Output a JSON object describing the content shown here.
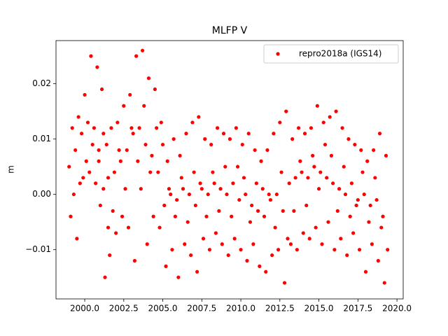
{
  "chart_data": {
    "type": "scatter",
    "title": "MLFP V",
    "y_label": "m",
    "xlim": [
      1998.16,
      2020.4
    ],
    "ylim": [
      -0.0189,
      0.0278
    ],
    "xticks": [
      {
        "value": 2000,
        "label": "2000.0"
      },
      {
        "value": 2002.5,
        "label": "2002.5"
      },
      {
        "value": 2005,
        "label": "2005.0"
      },
      {
        "value": 2007.5,
        "label": "2007.5"
      },
      {
        "value": 2010,
        "label": "2010.0"
      },
      {
        "value": 2012.5,
        "label": "2012.5"
      },
      {
        "value": 2015,
        "label": "2015.0"
      },
      {
        "value": 2017.5,
        "label": "2017.5"
      },
      {
        "value": 2020,
        "label": "2020.0"
      }
    ],
    "yticks": [
      {
        "value": -0.01,
        "label": "−0.01"
      },
      {
        "value": 0,
        "label": "0.00"
      },
      {
        "value": 0.01,
        "label": "0.01"
      },
      {
        "value": 0.02,
        "label": "0.02"
      }
    ],
    "legend": "upper right",
    "x": [
      1999.0,
      1999.1,
      1999.2,
      1999.3,
      1999.4,
      1999.5,
      1999.6,
      1999.7,
      1999.8,
      1999.9,
      2000.0,
      2000.1,
      2000.2,
      2000.3,
      2000.4,
      2000.5,
      2000.6,
      2000.7,
      2000.8,
      2000.9,
      2000.9,
      2001.0,
      2001.1,
      2001.2,
      2001.2,
      2001.3,
      2001.4,
      2001.5,
      2001.5,
      2001.6,
      2001.7,
      2001.8,
      2001.9,
      2002.0,
      2002.1,
      2002.2,
      2002.3,
      2002.4,
      2002.5,
      2002.6,
      2002.7,
      2002.8,
      2002.9,
      2003.0,
      2003.1,
      2003.2,
      2003.3,
      2003.4,
      2003.5,
      2003.6,
      2003.7,
      2003.8,
      2003.9,
      2004.0,
      2004.1,
      2004.2,
      2004.3,
      2004.4,
      2004.5,
      2004.6,
      2004.7,
      2004.8,
      2004.9,
      2005.0,
      2005.1,
      2005.2,
      2005.3,
      2005.4,
      2005.5,
      2005.6,
      2005.7,
      2005.8,
      2005.9,
      2006.0,
      2006.1,
      2006.2,
      2006.3,
      2006.4,
      2006.5,
      2006.6,
      2006.7,
      2006.8,
      2006.9,
      2007.0,
      2007.1,
      2007.2,
      2007.3,
      2007.4,
      2007.5,
      2007.6,
      2007.7,
      2007.8,
      2007.9,
      2008.0,
      2008.1,
      2008.2,
      2008.3,
      2008.4,
      2008.5,
      2008.6,
      2008.7,
      2008.8,
      2008.9,
      2009.0,
      2009.1,
      2009.2,
      2009.3,
      2009.4,
      2009.5,
      2009.6,
      2009.7,
      2009.8,
      2009.9,
      2010.0,
      2010.1,
      2010.2,
      2010.3,
      2010.4,
      2010.5,
      2010.6,
      2010.7,
      2010.8,
      2010.9,
      2011.0,
      2011.1,
      2011.2,
      2011.3,
      2011.4,
      2011.5,
      2011.6,
      2011.7,
      2011.8,
      2011.9,
      2012.0,
      2012.1,
      2012.2,
      2012.3,
      2012.4,
      2012.5,
      2012.6,
      2012.7,
      2012.8,
      2012.9,
      2013.0,
      2013.1,
      2013.2,
      2013.3,
      2013.4,
      2013.5,
      2013.6,
      2013.7,
      2013.8,
      2013.9,
      2014.0,
      2014.1,
      2014.2,
      2014.3,
      2014.4,
      2014.5,
      2014.6,
      2014.7,
      2014.8,
      2014.9,
      2015.0,
      2015.1,
      2015.2,
      2015.3,
      2015.4,
      2015.5,
      2015.6,
      2015.7,
      2015.8,
      2015.9,
      2016.0,
      2016.1,
      2016.2,
      2016.3,
      2016.4,
      2016.5,
      2016.6,
      2016.7,
      2016.8,
      2016.9,
      2017.0,
      2017.1,
      2017.2,
      2017.3,
      2017.4,
      2017.5,
      2017.6,
      2017.7,
      2017.8,
      2017.9,
      2018.0,
      2018.1,
      2018.2,
      2018.3,
      2018.4,
      2018.5,
      2018.6,
      2018.7,
      2018.8,
      2018.9,
      2019.0,
      2019.1,
      2019.2,
      2019.3,
      2019.4
    ],
    "series": [
      {
        "name": "repro2018a (IGS14)",
        "color": "#ff0000",
        "values": [
          0.005,
          -0.004,
          0.012,
          0.0,
          0.008,
          -0.008,
          0.014,
          0.002,
          0.011,
          0.003,
          0.018,
          0.006,
          0.013,
          0.004,
          0.025,
          0.009,
          0.012,
          0.002,
          0.023,
          0.008,
          0.006,
          -0.002,
          0.019,
          0.011,
          0.001,
          -0.015,
          0.009,
          -0.006,
          0.003,
          -0.011,
          0.012,
          -0.003,
          0.004,
          -0.007,
          0.013,
          0.008,
          0.006,
          -0.004,
          0.016,
          0.001,
          0.008,
          -0.006,
          0.018,
          0.012,
          0.011,
          -0.012,
          0.025,
          0.006,
          0.012,
          0.001,
          0.026,
          0.016,
          0.009,
          -0.009,
          0.021,
          0.004,
          0.007,
          -0.004,
          0.019,
          0.012,
          0.004,
          -0.006,
          0.013,
          0.009,
          -0.002,
          -0.013,
          0.006,
          0.001,
          0.0,
          -0.01,
          0.01,
          -0.004,
          -0.001,
          -0.015,
          0.007,
          0.003,
          0.001,
          -0.009,
          0.011,
          -0.005,
          0.0,
          -0.011,
          0.013,
          0.004,
          -0.002,
          -0.014,
          0.014,
          0.002,
          0.001,
          -0.008,
          0.01,
          -0.004,
          0.0,
          -0.01,
          0.009,
          0.004,
          0.002,
          -0.007,
          0.012,
          -0.003,
          0.001,
          -0.009,
          0.011,
          0.005,
          0.0,
          -0.011,
          0.01,
          -0.004,
          0.002,
          -0.008,
          0.012,
          0.005,
          -0.001,
          -0.01,
          0.009,
          0.003,
          0.0,
          -0.012,
          0.011,
          -0.005,
          -0.002,
          -0.009,
          0.008,
          0.002,
          -0.003,
          -0.013,
          0.006,
          0.001,
          -0.004,
          -0.014,
          0.008,
          0.0,
          -0.001,
          -0.011,
          0.011,
          -0.006,
          0.0,
          -0.01,
          0.013,
          0.004,
          -0.003,
          -0.016,
          0.015,
          -0.008,
          0.002,
          -0.009,
          0.01,
          -0.003,
          0.003,
          -0.01,
          0.012,
          0.006,
          0.004,
          -0.007,
          0.011,
          -0.002,
          0.003,
          -0.008,
          0.012,
          0.007,
          0.005,
          -0.006,
          0.016,
          0.001,
          0.004,
          -0.009,
          0.013,
          0.009,
          0.003,
          -0.005,
          0.014,
          0.007,
          0.002,
          -0.01,
          0.015,
          -0.003,
          0.001,
          -0.008,
          0.012,
          0.005,
          0.0,
          -0.011,
          0.01,
          -0.004,
          0.002,
          -0.007,
          0.009,
          -0.002,
          -0.001,
          -0.01,
          0.008,
          0.004,
          0.0,
          -0.014,
          0.006,
          -0.005,
          -0.002,
          -0.009,
          0.008,
          0.003,
          -0.001,
          -0.012,
          0.011,
          -0.006,
          -0.004,
          -0.016,
          0.007,
          -0.01
        ]
      }
    ]
  }
}
